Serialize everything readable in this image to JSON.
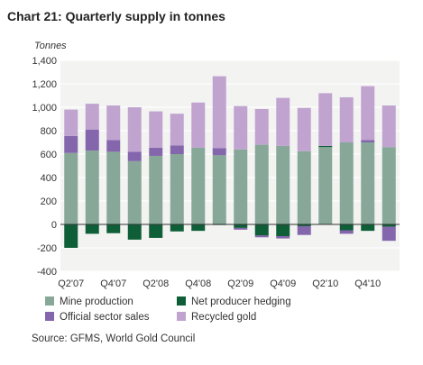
{
  "title": "Chart 21: Quarterly supply in tonnes",
  "source": "Source: GFMS, World Gold Council",
  "chart_data": {
    "type": "bar",
    "stacked": true,
    "ylabel": "Tonnes",
    "ylim": [
      -400,
      1400
    ],
    "yticks": [
      -400,
      -200,
      0,
      200,
      400,
      600,
      800,
      1000,
      1200,
      1400
    ],
    "ytick_labels": [
      "-400",
      "-200",
      "0",
      "200",
      "400",
      "600",
      "800",
      "1,000",
      "1,200",
      "1,400"
    ],
    "grid": true,
    "categories": [
      "Q2'07",
      "Q3'07",
      "Q4'07",
      "Q1'08",
      "Q2'08",
      "Q3'08",
      "Q4'08",
      "Q1'09",
      "Q2'09",
      "Q3'09",
      "Q4'09",
      "Q1'10",
      "Q2'10",
      "Q3'10",
      "Q4'10",
      "Q1'11"
    ],
    "xtick_labels": [
      "Q2'07",
      "",
      "Q4'07",
      "",
      "Q2'08",
      "",
      "Q4'08",
      "",
      "Q2'09",
      "",
      "Q4'09",
      "",
      "Q2'10",
      "",
      "Q4'10",
      ""
    ],
    "series": [
      {
        "name": "Mine production",
        "color": "#87a898",
        "values": [
          610,
          630,
          620,
          540,
          585,
          600,
          655,
          590,
          640,
          680,
          670,
          625,
          660,
          700,
          700,
          660
        ]
      },
      {
        "name": "Net producer hedging",
        "color": "#0e5e38",
        "values": [
          -200,
          -80,
          -75,
          -130,
          -115,
          -60,
          -55,
          -5,
          -30,
          -95,
          -100,
          -15,
          10,
          -50,
          -55,
          -20
        ]
      },
      {
        "name": "Official sector sales",
        "color": "#8466ac",
        "values": [
          145,
          180,
          100,
          80,
          70,
          75,
          0,
          60,
          -15,
          -15,
          -20,
          -75,
          0,
          -30,
          20,
          -120
        ]
      },
      {
        "name": "Recycled gold",
        "color": "#c0a4cf",
        "values": [
          225,
          220,
          295,
          380,
          310,
          270,
          385,
          615,
          370,
          305,
          410,
          370,
          450,
          385,
          460,
          355
        ]
      }
    ],
    "legend_position": "bottom"
  },
  "legend": [
    {
      "name": "Mine production",
      "color": "#87a898"
    },
    {
      "name": "Net producer hedging",
      "color": "#0e5e38"
    },
    {
      "name": "Official sector sales",
      "color": "#8466ac"
    },
    {
      "name": "Recycled gold",
      "color": "#c0a4cf"
    }
  ]
}
